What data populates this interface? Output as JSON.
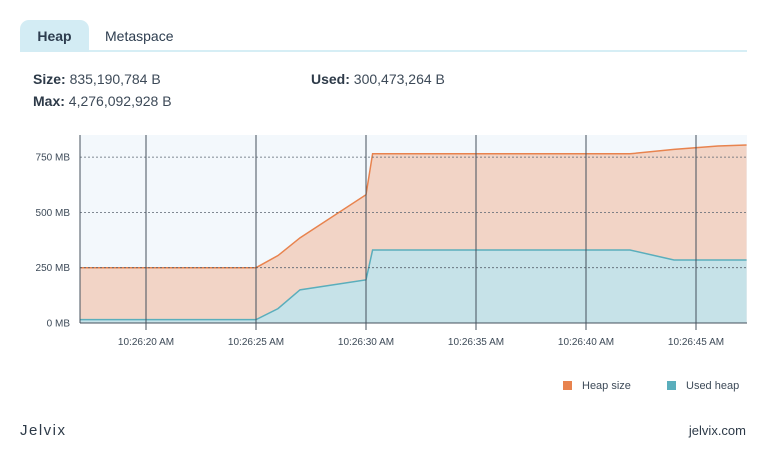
{
  "tabs": [
    {
      "label": "Heap",
      "active": true
    },
    {
      "label": "Metaspace",
      "active": false
    }
  ],
  "stats": {
    "size": {
      "label": "Size:",
      "value": "835,190,784 B"
    },
    "max": {
      "label": "Max:",
      "value": "4,276,092,928 B"
    },
    "used": {
      "label": "Used:",
      "value": "300,473,264 B"
    }
  },
  "chart_data": {
    "type": "area",
    "x": [
      "10:26:17",
      "10:26:22",
      "10:26:23",
      "10:26:24",
      "10:26:25",
      "10:26:26",
      "10:26:27",
      "10:26:30",
      "10:26:30.3",
      "10:26:31",
      "10:26:35",
      "10:26:40",
      "10:26:42",
      "10:26:44",
      "10:26:46",
      "10:26:47.3"
    ],
    "series": [
      {
        "name": "Heap size",
        "color": "#e8834e",
        "fill": "#f2d4c6",
        "values": [
          250,
          250,
          250,
          250,
          250,
          305,
          385,
          580,
          765,
          765,
          765,
          765,
          765,
          785,
          800,
          805
        ]
      },
      {
        "name": "Used heap",
        "color": "#5aaebc",
        "fill": "#c6e2e8",
        "values": [
          15,
          15,
          15,
          15,
          15,
          65,
          150,
          195,
          330,
          330,
          330,
          330,
          330,
          285,
          285,
          285
        ]
      }
    ],
    "x_tick_labels": [
      "10:26:20 AM",
      "10:26:25 AM",
      "10:26:30 AM",
      "10:26:35 AM",
      "10:26:40 AM",
      "10:26:45 AM"
    ],
    "y_tick_labels": [
      "0 MB",
      "250 MB",
      "500 MB",
      "750 MB"
    ],
    "y_ticks": [
      0,
      250,
      500,
      750
    ],
    "ylim": [
      0,
      850
    ],
    "grid": true,
    "legend_position": "bottom-right"
  },
  "legend": [
    {
      "label": "Heap size",
      "color": "#e8834e"
    },
    {
      "label": "Used heap",
      "color": "#5aaebc"
    }
  ],
  "footer": {
    "logo": "Jelvix",
    "site": "jelvix.com"
  }
}
